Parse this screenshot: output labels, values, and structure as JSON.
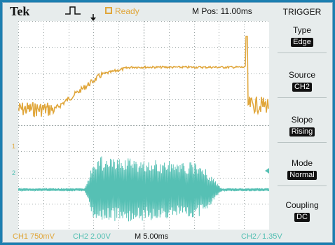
{
  "header": {
    "brand": "Tek",
    "status": "Ready",
    "mpos": "M Pos: 11.00ms"
  },
  "menu": {
    "title": "TRIGGER",
    "items": [
      {
        "label": "Type",
        "value": "Edge"
      },
      {
        "label": "Source",
        "value": "CH2"
      },
      {
        "label": "Slope",
        "value": "Rising"
      },
      {
        "label": "Mode",
        "value": "Normal"
      },
      {
        "label": "Coupling",
        "value": "DC"
      }
    ]
  },
  "footer": {
    "ch1": "CH1  750mV",
    "ch2": "CH2  2.00V",
    "timebase": "M 5.00ms",
    "trigger": "CH2 ∕ 1.35V"
  },
  "markers": {
    "ch1": "1",
    "ch2": "2"
  },
  "colors": {
    "ch1": "#e0a63a",
    "ch2": "#56c0b4",
    "grid": "#9aa4a4",
    "background": "#ffffff"
  }
}
